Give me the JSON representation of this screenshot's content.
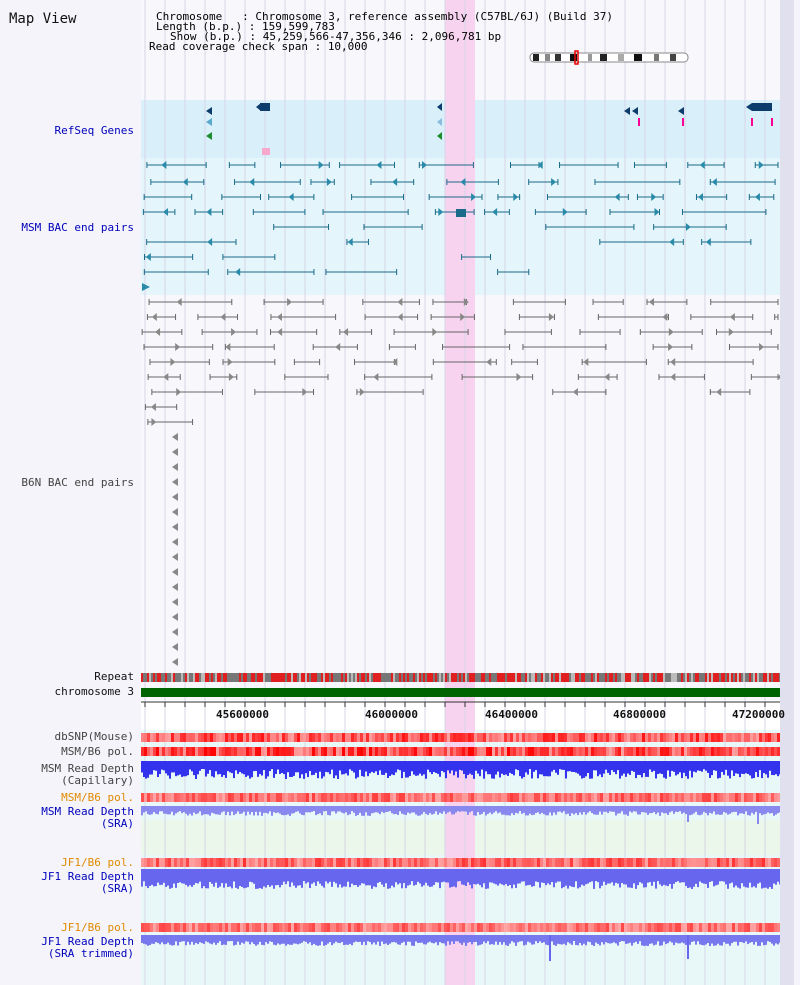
{
  "title": "Map View",
  "info": {
    "chromosome_key": "Chromosome   : ",
    "chromosome_val": "Chromosome 3, reference assembly (C57BL/6J) (Build 37)",
    "length_key": "Length (b.p.) : ",
    "length_val": "159,599,783",
    "show_key": "Show (b.p.) : ",
    "show_val": "45,259,566-47,356,346 : 2,096,781 bp",
    "span_key": "Read coverage check span : ",
    "span_val": "10,000"
  },
  "tracks": {
    "refseq": "RefSeq Genes",
    "msm_bac": "MSM BAC end pairs",
    "b6n_bac": "B6N BAC end pairs",
    "repeat": "Repeat",
    "chromosome": "chromosome 3",
    "dbsnp": "dbSNP(Mouse)",
    "msm_b6_pol_1": "MSM/B6 pol.",
    "msm_depth_cap_1": "MSM Read Depth",
    "msm_depth_cap_2": "(Capillary)",
    "msm_b6_pol_2": "MSM/B6 pol.",
    "msm_depth_sra_1": "MSM Read Depth",
    "msm_depth_sra_2": "(SRA)",
    "jf1_b6_pol_1": "JF1/B6 pol.",
    "jf1_depth_sra_1": "JF1 Read Depth",
    "jf1_depth_sra_2": "(SRA)",
    "jf1_b6_pol_2": "JF1/B6 pol.",
    "jf1_depth_trim_1": "JF1 Read Depth",
    "jf1_depth_trim_2": "(SRA trimmed)"
  },
  "axis": {
    "ticks": [
      "45600000",
      "46000000",
      "46400000",
      "46800000",
      "47200000"
    ],
    "tick_values": [
      45600000,
      46000000,
      46400000,
      46800000,
      47200000
    ]
  },
  "colors": {
    "highlight": "#f7d3ef",
    "refseq_bg": "#d9effa",
    "msm_bg": "#e4f6fb",
    "chromosome_bar": "#006400",
    "depth_blue": "#3333ee",
    "depth_light": "#8888ee"
  }
}
